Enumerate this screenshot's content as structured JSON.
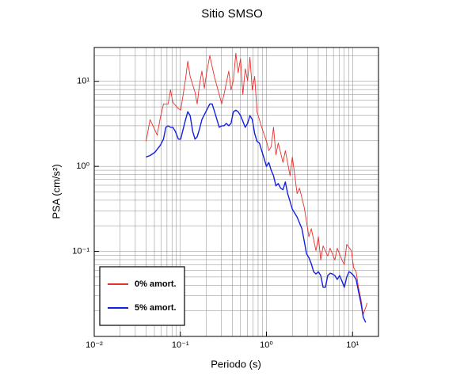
{
  "chart_data": {
    "type": "line",
    "title": "Sitio SMSO",
    "xlabel": "Periodo (s)",
    "ylabel": "PSA (cm/s²)",
    "xscale": "log",
    "yscale": "log",
    "grid": true,
    "legend": "lower left",
    "xlim": [
      0.01,
      20
    ],
    "ylim": [
      0.01,
      25
    ],
    "xticks": [
      {
        "value": 0.01,
        "label": "10⁻²"
      },
      {
        "value": 0.1,
        "label": "10⁻¹"
      },
      {
        "value": 1,
        "label": "10⁰"
      },
      {
        "value": 10,
        "label": "10¹"
      }
    ],
    "yticks": [
      {
        "value": 0.1,
        "label": "10⁻¹"
      },
      {
        "value": 1,
        "label": "10⁰"
      },
      {
        "value": 10,
        "label": "10¹"
      }
    ],
    "xminorticks": [
      0.02,
      0.03,
      0.04,
      0.05,
      0.06,
      0.07,
      0.08,
      0.09,
      0.2,
      0.3,
      0.4,
      0.5,
      0.6,
      0.7,
      0.8,
      0.9,
      2,
      3,
      4,
      5,
      6,
      7,
      8,
      9
    ],
    "yminorticks": [
      0.02,
      0.03,
      0.04,
      0.05,
      0.06,
      0.07,
      0.08,
      0.09,
      0.2,
      0.3,
      0.4,
      0.5,
      0.6,
      0.7,
      0.8,
      0.9,
      2,
      3,
      4,
      5,
      6,
      7,
      8,
      9,
      20
    ],
    "series": [
      {
        "name": "0% amort.",
        "color": "#e8302a",
        "x": [
          0.04,
          0.0445,
          0.0505,
          0.0538,
          0.0585,
          0.0637,
          0.0722,
          0.0769,
          0.0819,
          0.0949,
          0.101,
          0.115,
          0.122,
          0.13,
          0.148,
          0.157,
          0.167,
          0.178,
          0.19,
          0.202,
          0.22,
          0.234,
          0.25,
          0.283,
          0.302,
          0.321,
          0.365,
          0.388,
          0.413,
          0.441,
          0.469,
          0.5,
          0.532,
          0.567,
          0.604,
          0.643,
          0.685,
          0.73,
          0.777,
          0.881,
          1.0,
          1.065,
          1.135,
          1.208,
          1.288,
          1.371,
          1.556,
          1.657,
          1.879,
          2.0,
          2.27,
          2.42,
          2.74,
          3.11,
          3.32,
          3.76,
          4.01,
          4.27,
          4.55,
          5.15,
          5.49,
          6.23,
          6.64,
          7.53,
          8.02,
          8.55,
          9.69,
          10.3,
          11.0,
          11.7,
          12.5,
          13.3,
          14.8
        ],
        "values": [
          1.97,
          3.55,
          2.7,
          2.33,
          3.71,
          5.42,
          5.42,
          7.93,
          5.65,
          4.77,
          4.58,
          10.7,
          17.3,
          11.4,
          7.44,
          5.42,
          9.19,
          13.2,
          8.27,
          12.6,
          20.1,
          14.9,
          11.1,
          6.98,
          5.42,
          6.98,
          13.2,
          7.93,
          10.2,
          21.4,
          12.6,
          18.5,
          6.98,
          14.0,
          10.2,
          19.2,
          7.93,
          11.4,
          4.39,
          2.88,
          1.97,
          1.53,
          1.7,
          2.88,
          1.37,
          1.88,
          1.11,
          1.53,
          0.776,
          1.29,
          0.478,
          0.554,
          0.333,
          0.149,
          0.185,
          0.102,
          0.149,
          0.0793,
          0.116,
          0.0881,
          0.109,
          0.0793,
          0.109,
          0.0793,
          0.0698,
          0.121,
          0.102,
          0.0642,
          0.0577,
          0.0378,
          0.0276,
          0.0181,
          0.0248
        ]
      },
      {
        "name": "5% amort.",
        "color": "#1420e0",
        "x": [
          0.04,
          0.0445,
          0.0505,
          0.0585,
          0.0637,
          0.0678,
          0.0722,
          0.0769,
          0.0819,
          0.0873,
          0.0949,
          0.101,
          0.108,
          0.115,
          0.122,
          0.13,
          0.139,
          0.148,
          0.157,
          0.167,
          0.178,
          0.202,
          0.22,
          0.234,
          0.25,
          0.266,
          0.283,
          0.302,
          0.321,
          0.342,
          0.365,
          0.388,
          0.413,
          0.441,
          0.469,
          0.5,
          0.532,
          0.567,
          0.604,
          0.643,
          0.685,
          0.73,
          0.777,
          0.828,
          0.881,
          0.939,
          1.0,
          1.065,
          1.135,
          1.208,
          1.288,
          1.371,
          1.46,
          1.556,
          1.657,
          1.764,
          1.879,
          2.0,
          2.27,
          2.58,
          2.74,
          2.92,
          3.11,
          3.32,
          3.53,
          3.76,
          4.01,
          4.27,
          4.55,
          4.84,
          5.15,
          5.49,
          5.85,
          6.23,
          6.64,
          7.07,
          7.53,
          8.02,
          8.55,
          9.1,
          9.69,
          10.3,
          11.0,
          11.7,
          12.5,
          13.3,
          14.2
        ],
        "values": [
          1.29,
          1.34,
          1.46,
          1.77,
          2.09,
          2.88,
          3.0,
          2.88,
          2.88,
          2.59,
          2.09,
          2.09,
          2.76,
          3.55,
          4.39,
          3.95,
          2.59,
          2.09,
          2.23,
          2.76,
          3.55,
          4.58,
          5.42,
          5.42,
          4.39,
          3.55,
          2.88,
          3.0,
          3.0,
          3.2,
          3.0,
          3.2,
          4.39,
          4.58,
          4.39,
          3.95,
          3.4,
          2.88,
          3.2,
          3.95,
          3.55,
          2.43,
          1.97,
          1.88,
          1.53,
          1.24,
          1.0,
          1.11,
          0.9,
          0.776,
          0.59,
          0.628,
          0.554,
          0.531,
          0.656,
          0.478,
          0.387,
          0.313,
          0.253,
          0.185,
          0.134,
          0.0938,
          0.0845,
          0.0713,
          0.0577,
          0.0542,
          0.0577,
          0.052,
          0.0378,
          0.0378,
          0.052,
          0.0553,
          0.0542,
          0.052,
          0.0468,
          0.052,
          0.0448,
          0.0378,
          0.0498,
          0.0577,
          0.0553,
          0.052,
          0.0468,
          0.034,
          0.0248,
          0.0169,
          0.0146
        ]
      }
    ]
  }
}
